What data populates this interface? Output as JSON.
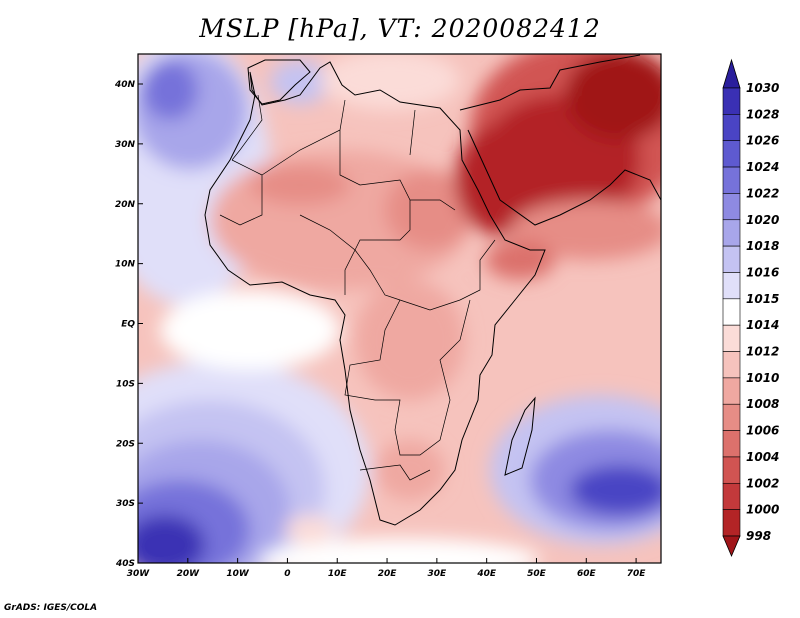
{
  "title": "MSLP [hPa], VT: 2020082412",
  "credit": "GrADS: IGES/COLA",
  "map": {
    "lon_labels": [
      "30W",
      "20W",
      "10W",
      "0",
      "10E",
      "20E",
      "30E",
      "40E",
      "50E",
      "60E",
      "70E"
    ],
    "lat_labels": [
      "40N",
      "30N",
      "20N",
      "10N",
      "EQ",
      "10S",
      "20S",
      "30S",
      "40S"
    ]
  },
  "colorbar": {
    "levels": [
      "1030",
      "1028",
      "1026",
      "1024",
      "1022",
      "1020",
      "1018",
      "1016",
      "1015",
      "1014",
      "1012",
      "1010",
      "1008",
      "1006",
      "1004",
      "1002",
      "1000",
      "998"
    ],
    "colors": [
      "#2a1e9c",
      "#3a30b4",
      "#4a44c4",
      "#5e5ad0",
      "#7672da",
      "#8e8ae2",
      "#a8a6ea",
      "#c4c3f2",
      "#e0dff9",
      "#ffffff",
      "#fbdcd8",
      "#f6c3bd",
      "#efa8a1",
      "#e68d86",
      "#dc716c",
      "#d15452",
      "#c3393b",
      "#b32426",
      "#a01519"
    ]
  }
}
